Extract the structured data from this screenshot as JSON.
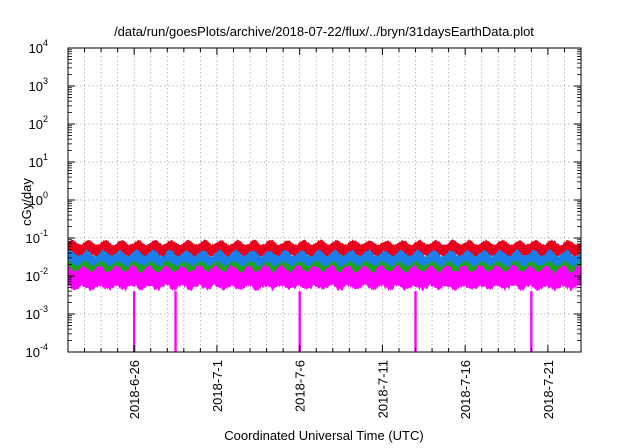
{
  "chart_data": {
    "type": "area",
    "title": "/data/run/goesPlots/archive/2018-07-22/flux/../bryn/31daysEarthData.plot",
    "xlabel": "Coordinated Universal Time (UTC)",
    "ylabel": "cGy/day",
    "yscale": "log",
    "ylim": [
      0.0001,
      10000
    ],
    "xlim": [
      "2018-06-22",
      "2018-07-23"
    ],
    "grid": true,
    "legend": "none",
    "x_ticks": [
      "2018-6-26",
      "2018-7-1",
      "2018-7-6",
      "2018-7-11",
      "2018-7-16",
      "2018-7-21"
    ],
    "y_ticks": [
      {
        "base": "10",
        "exp": "-4",
        "value": 0.0001
      },
      {
        "base": "10",
        "exp": "-3",
        "value": 0.001
      },
      {
        "base": "10",
        "exp": "-2",
        "value": 0.01
      },
      {
        "base": "10",
        "exp": "-1",
        "value": 0.1
      },
      {
        "base": "10",
        "exp": "0",
        "value": 1
      },
      {
        "base": "10",
        "exp": "1",
        "value": 10
      },
      {
        "base": "10",
        "exp": "2",
        "value": 100
      },
      {
        "base": "10",
        "exp": "3",
        "value": 1000
      },
      {
        "base": "10",
        "exp": "4",
        "value": 10000
      }
    ],
    "series": [
      {
        "color": "#e8001c",
        "band": [
          0.03,
          0.09
        ]
      },
      {
        "color": "#1a7fe6",
        "band": [
          0.012,
          0.05
        ]
      },
      {
        "color": "#1aa51a",
        "band": [
          0.008,
          0.025
        ]
      },
      {
        "color": "#ff00ff",
        "band": [
          0.004,
          0.02
        ],
        "dropouts": [
          {
            "date": "2018-06-26",
            "min": 0.0001
          },
          {
            "date": "2018-06-28T12:00",
            "min": 0.0001
          },
          {
            "date": "2018-07-06",
            "min": 0.0001
          },
          {
            "date": "2018-07-13",
            "min": 0.0001
          },
          {
            "date": "2018-07-20",
            "min": 0.0001
          }
        ]
      }
    ]
  }
}
